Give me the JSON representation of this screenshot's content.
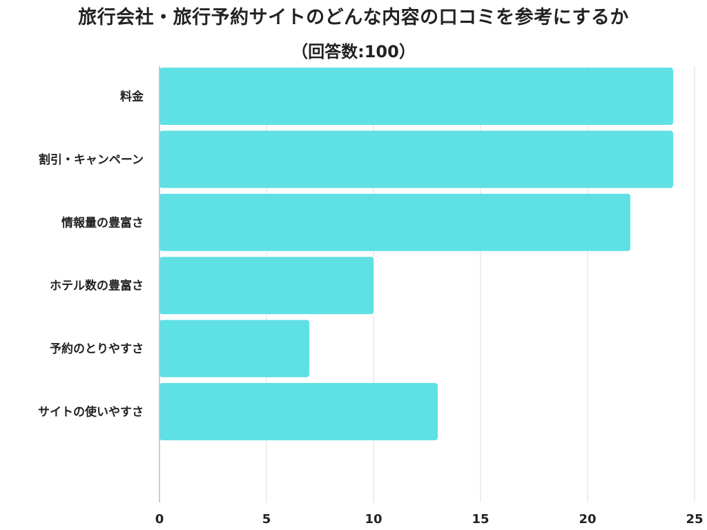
{
  "chart_data": {
    "type": "bar",
    "orientation": "horizontal",
    "title": "旅行会社・旅行予約サイトのどんな内容の口コミを参考にするか",
    "subtitle": "（回答数:100）",
    "categories": [
      "料金",
      "割引・キャンペーン",
      "情報量の豊富さ",
      "ホテル数の豊富さ",
      "予約のとりやすさ",
      "サイトの使いやすさ"
    ],
    "values": [
      24,
      24,
      22,
      10,
      7,
      13
    ],
    "xlim": [
      0,
      25
    ],
    "xticks": [
      0,
      5,
      10,
      15,
      20,
      25
    ],
    "xtick_labels": [
      "0",
      "5",
      "10",
      "15",
      "20",
      "25"
    ],
    "grid": "vertical",
    "bar_color": "#5fe0e4",
    "grid_color": "#dddddd",
    "axis_color": "#bbbbbb"
  }
}
